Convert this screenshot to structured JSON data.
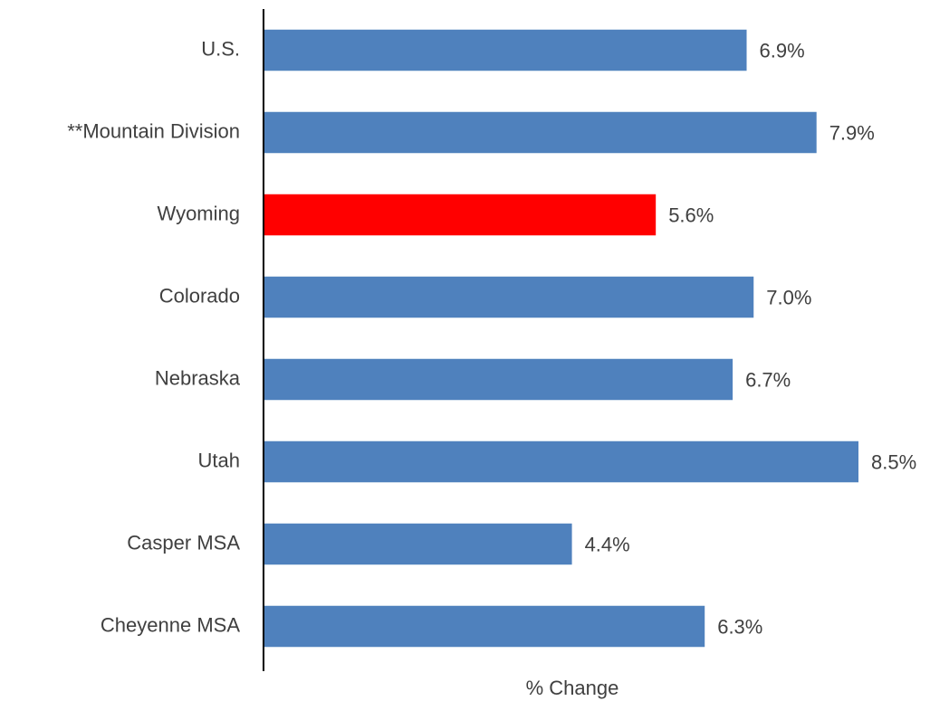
{
  "chart_data": {
    "type": "barh",
    "categories": [
      "U.S.",
      "**Mountain Division",
      "Wyoming",
      "Colorado",
      "Nebraska",
      "Utah",
      "Casper MSA",
      "Cheyenne MSA"
    ],
    "values": [
      6.9,
      7.9,
      5.6,
      7.0,
      6.7,
      8.5,
      4.4,
      6.3
    ],
    "value_labels": [
      "6.9%",
      "7.9%",
      "5.6%",
      "7.0%",
      "6.7%",
      "8.5%",
      "4.4%",
      "6.3%"
    ],
    "colors": [
      "#4f81bd",
      "#4f81bd",
      "#ff0000",
      "#4f81bd",
      "#4f81bd",
      "#4f81bd",
      "#4f81bd",
      "#4f81bd"
    ],
    "xlabel": "% Change",
    "xlim": [
      0,
      8.5
    ]
  }
}
